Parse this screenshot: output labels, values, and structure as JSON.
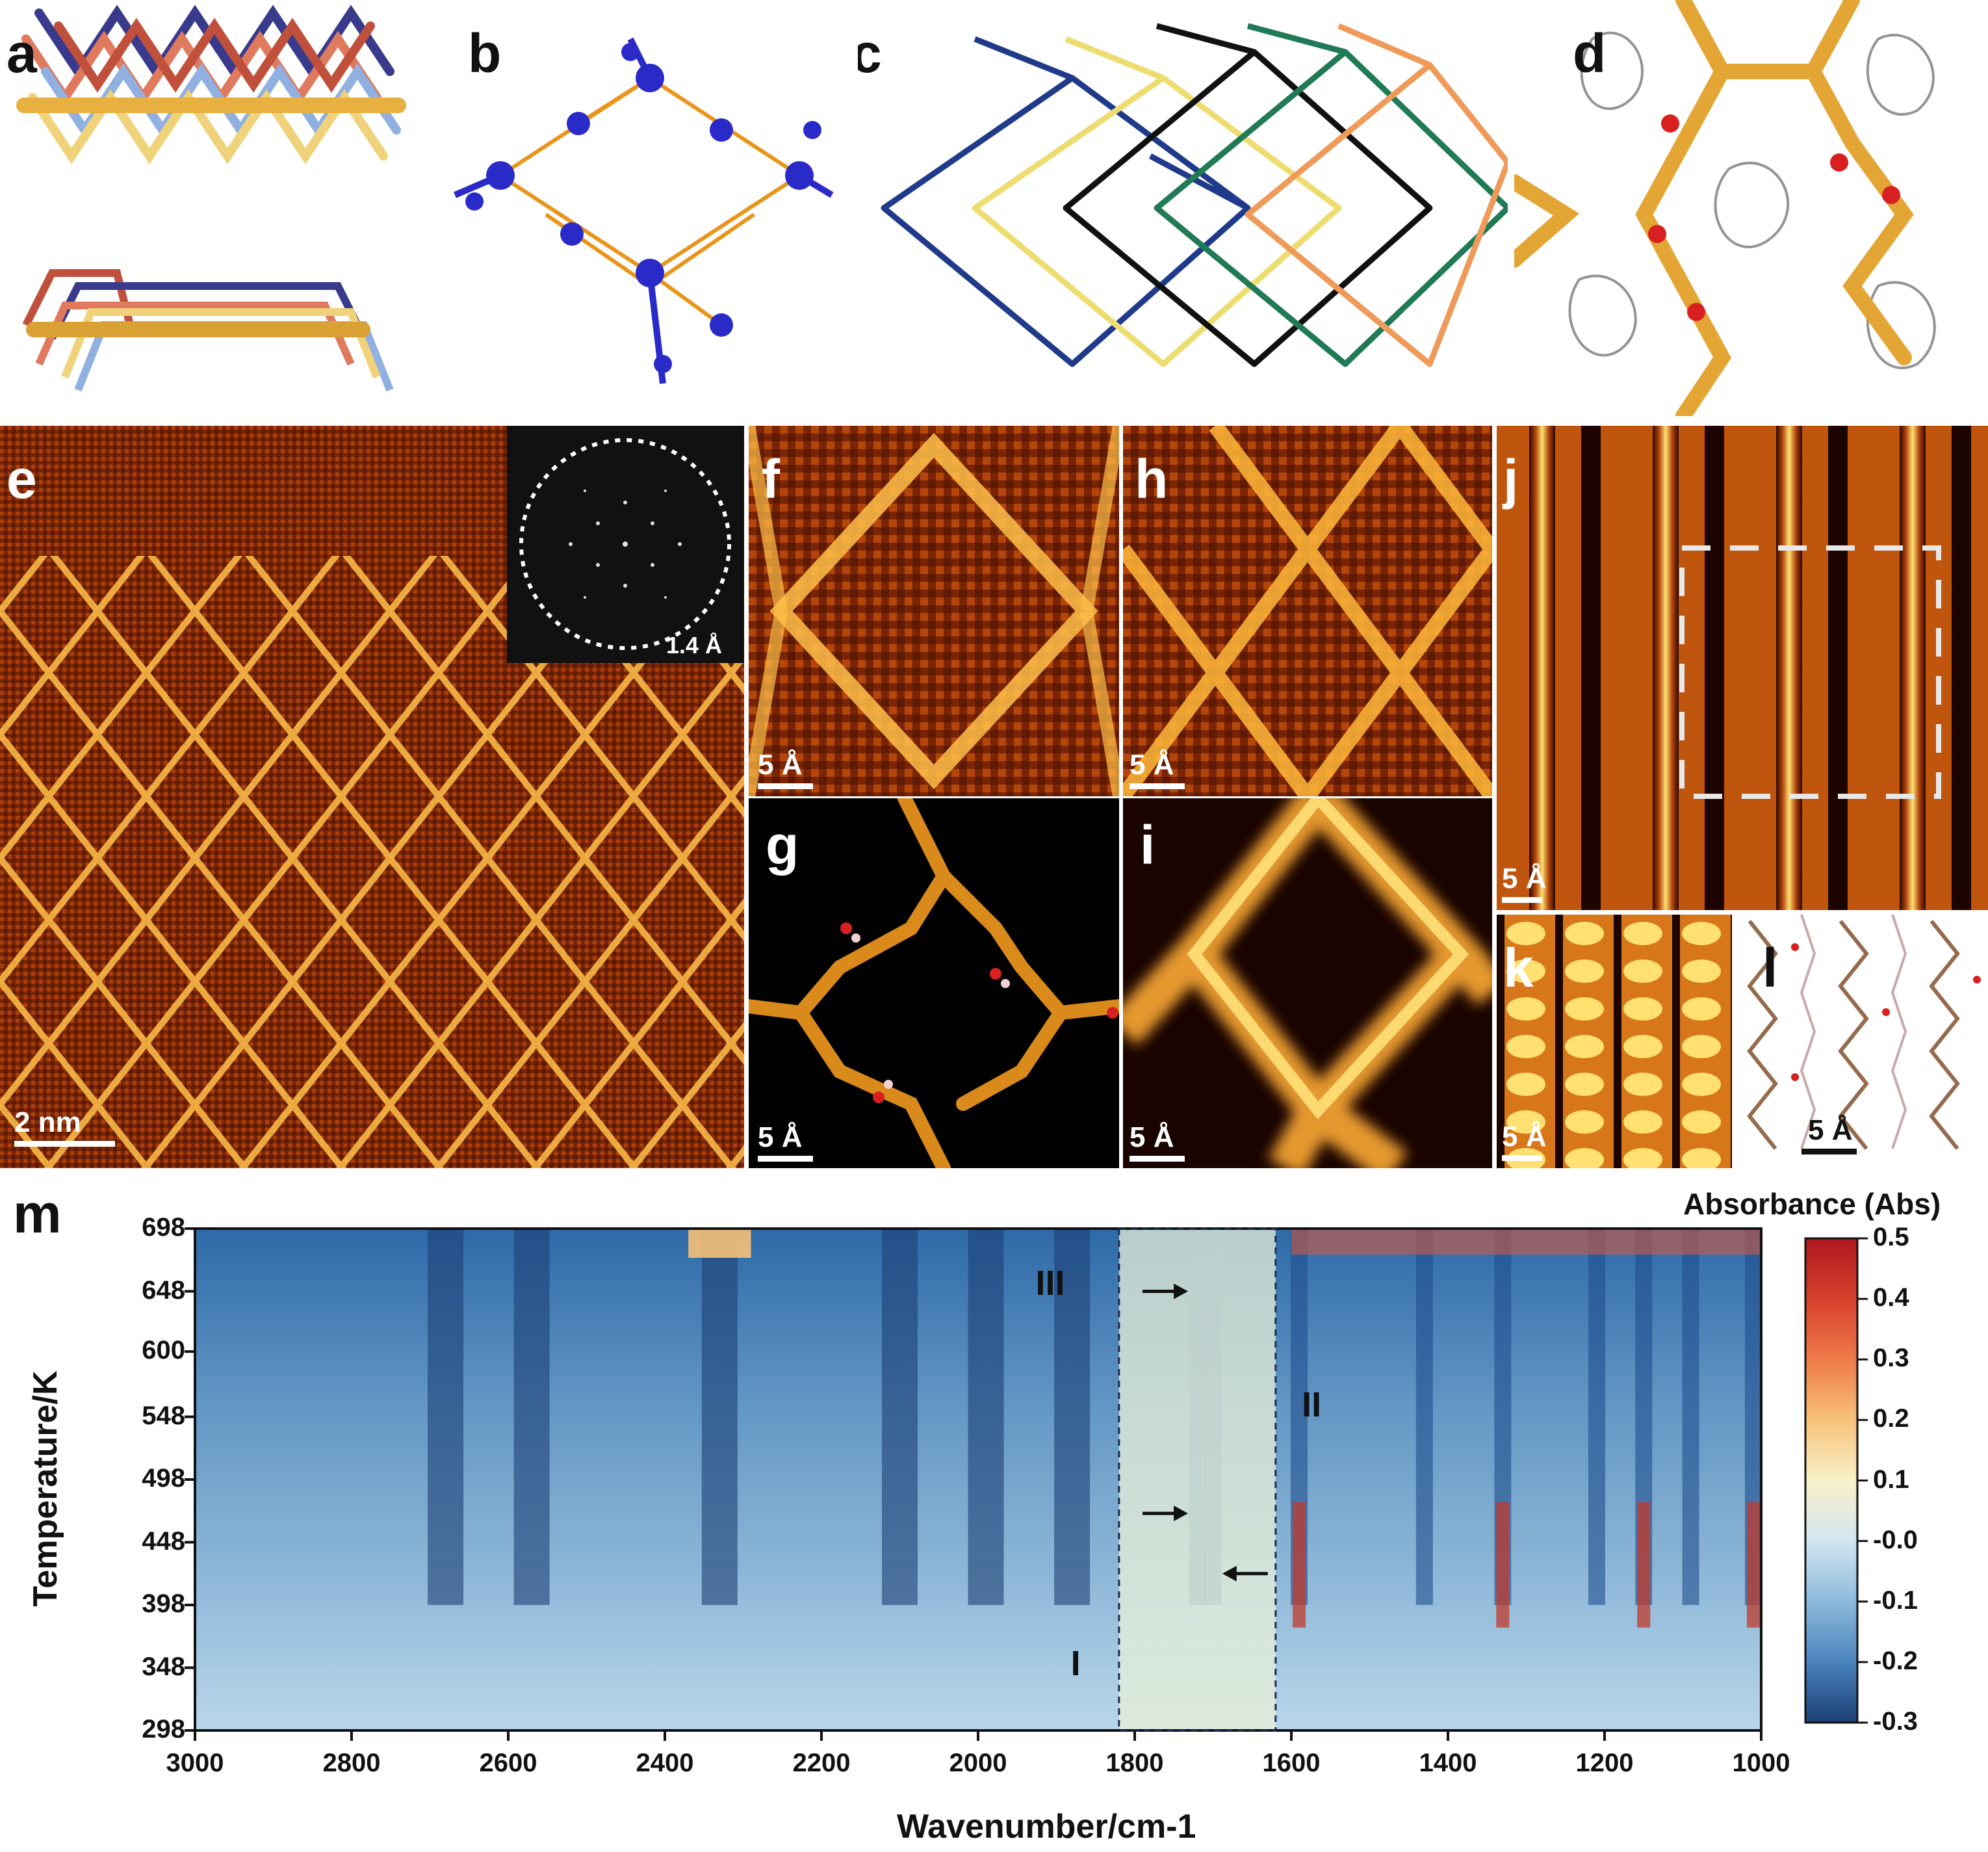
{
  "panels": {
    "a": "a",
    "b": "b",
    "c": "c",
    "d": "d",
    "e": "e",
    "f": "f",
    "g": "g",
    "h": "h",
    "i": "i",
    "j": "j",
    "k": "k",
    "l": "l",
    "m": "m"
  },
  "scale_bars": {
    "e": "2 nm",
    "e_inset": "1.4 Å",
    "f": "5 Å",
    "g": "5 Å",
    "h": "5 Å",
    "i": "5 Å",
    "j": "5 Å",
    "k": "5 Å",
    "l": "5 Å"
  },
  "colors": {
    "afm_dark": "#5a1f05",
    "afm_mid": "#b4460c",
    "afm_bright": "#ffd24a",
    "blue_framework": "#2020c0",
    "orange_link": "#e8951a"
  },
  "chart_data": {
    "type": "heatmap",
    "xlabel": "Wavenumber/cm-1",
    "ylabel": "Temperature/K",
    "colorbar_label": "Absorbance (Abs)",
    "x_ticks": [
      3000,
      2800,
      2600,
      2400,
      2200,
      2000,
      1800,
      1600,
      1400,
      1200,
      1000
    ],
    "y_ticks": [
      698,
      648,
      600,
      548,
      498,
      448,
      398,
      348,
      298
    ],
    "xlim": [
      3000,
      1000
    ],
    "ylim": [
      298,
      698
    ],
    "colorbar_ticks": [
      "0.5",
      "0.4",
      "0.3",
      "0.2",
      "0.1",
      "-0.0",
      "-0.1",
      "-0.2",
      "-0.3"
    ],
    "colorbar_range": [
      -0.3,
      0.5
    ],
    "highlight_region": [
      1820,
      1620
    ],
    "region_labels": [
      "I",
      "II",
      "III"
    ],
    "arrows": [
      {
        "wavenumber": 1790,
        "temperature": 648,
        "direction": "right"
      },
      {
        "wavenumber": 1790,
        "temperature": 471,
        "direction": "right"
      },
      {
        "wavenumber": 1630,
        "temperature": 423,
        "direction": "left"
      }
    ],
    "absorption_bands": [
      2680,
      2570,
      2330,
      2100,
      1990,
      1880,
      1720,
      1700,
      1590,
      1430,
      1330,
      1210,
      1150,
      1090,
      1010
    ]
  }
}
